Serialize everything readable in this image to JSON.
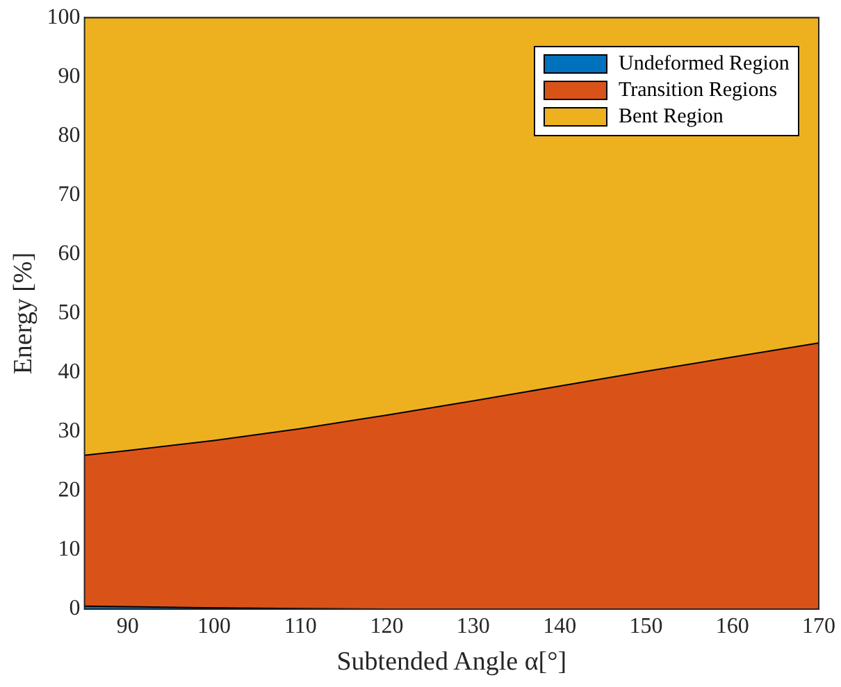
{
  "chart_data": {
    "type": "area",
    "stacked": true,
    "xlabel": "Subtended Angle α[°]",
    "ylabel": "Energy [%]",
    "x": [
      85,
      90,
      100,
      110,
      120,
      130,
      140,
      150,
      160,
      170
    ],
    "xlim": [
      85,
      170
    ],
    "xticks": [
      90,
      100,
      110,
      120,
      130,
      140,
      150,
      160,
      170
    ],
    "ylim": [
      0,
      100
    ],
    "yticks": [
      0,
      10,
      20,
      30,
      40,
      50,
      60,
      70,
      80,
      90,
      100
    ],
    "grid": false,
    "legend": "top right",
    "series": [
      {
        "name": "Undeformed Region",
        "color": "#0072bd",
        "values": [
          0.5,
          0.4,
          0.2,
          0.1,
          0,
          0,
          0,
          0,
          0,
          0
        ]
      },
      {
        "name": "Transition Regions",
        "color": "#d95319",
        "values": [
          25.5,
          26.4,
          28.3,
          30.4,
          32.8,
          35.2,
          37.7,
          40.2,
          42.6,
          45.0
        ]
      },
      {
        "name": "Bent Region",
        "color": "#edb120",
        "values": [
          74,
          73.2,
          71.5,
          69.5,
          67.2,
          64.8,
          62.3,
          59.8,
          57.4,
          55
        ]
      }
    ]
  }
}
